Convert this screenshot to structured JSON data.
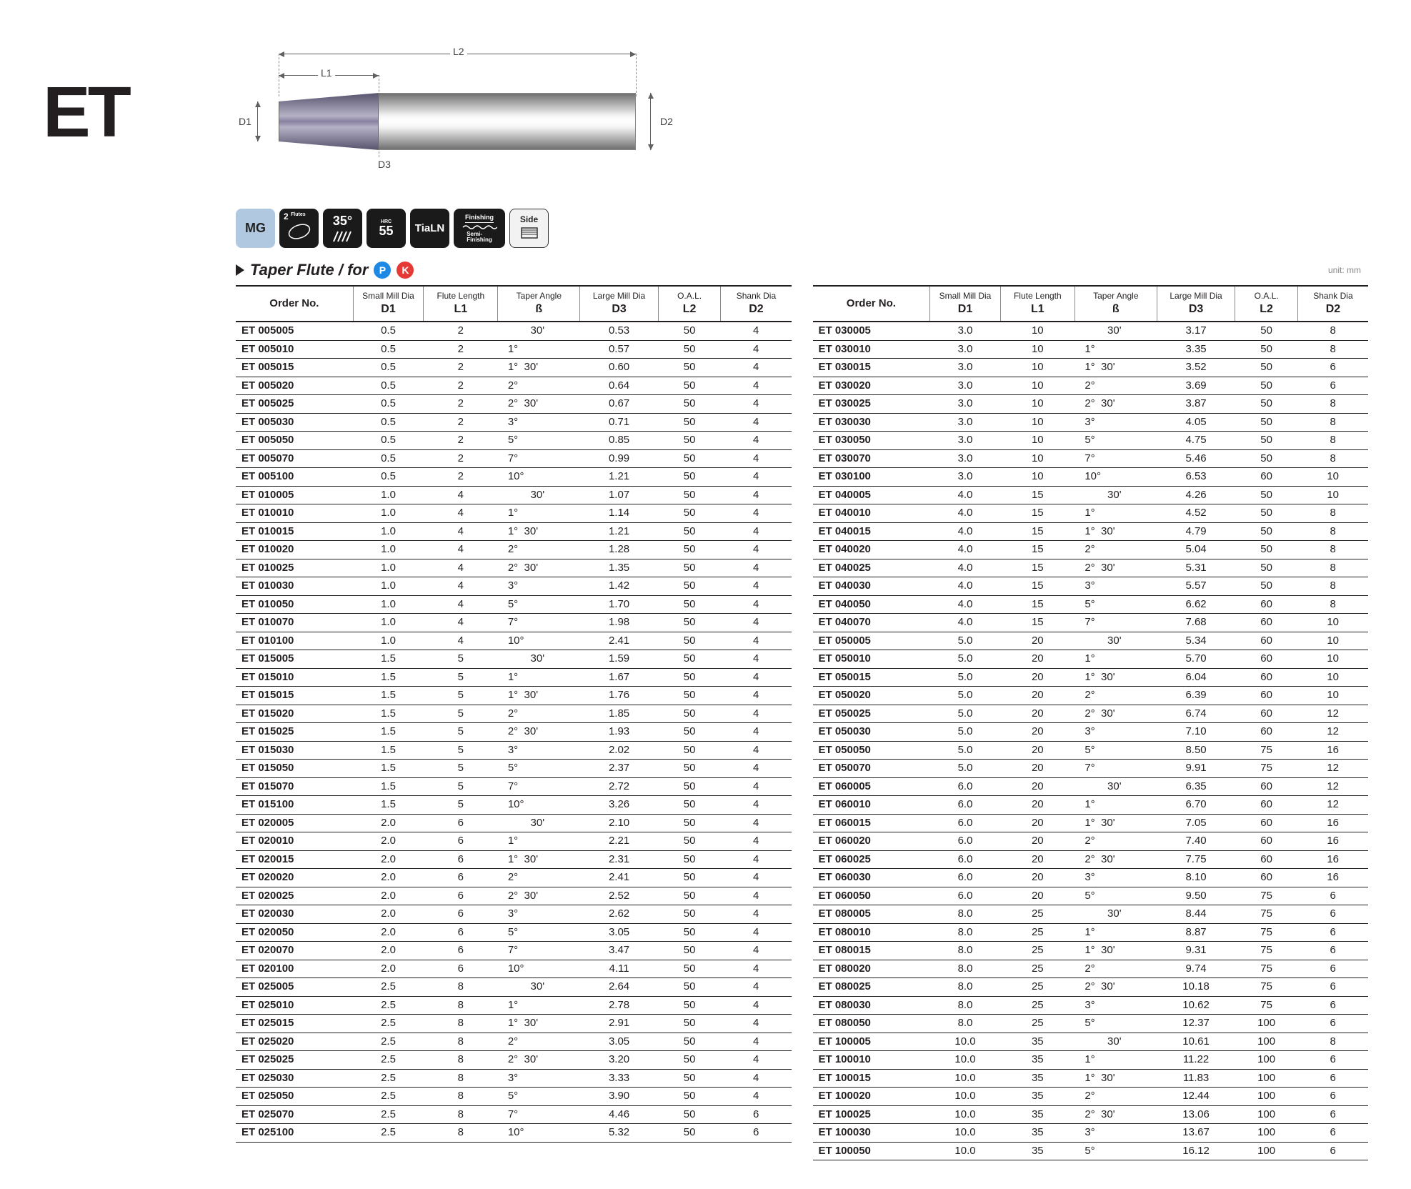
{
  "series": "ET",
  "diagram_labels": {
    "L2": "L2",
    "L1": "L1",
    "D1": "D1",
    "D2": "D2",
    "D3": "D3"
  },
  "badges": {
    "mg": "MG",
    "flutes_n": "2",
    "flutes_lbl": "Flutes",
    "helix": "35°",
    "hrc_top": "HRC",
    "hrc_n": "55",
    "coating": "TiaLN",
    "finishing_top": "Finishing",
    "finishing_bot": "Semi-\nFinishing",
    "side": "Side"
  },
  "title": {
    "text": "Taper Flute / for",
    "p": "P",
    "k": "K"
  },
  "unit": "unit: mm",
  "columns": {
    "order": "Order No.",
    "d1_top": "Small Mill Dia",
    "d1": "D1",
    "l1_top": "Flute Length",
    "l1": "L1",
    "beta_top": "Taper Angle",
    "beta": "ß",
    "d3_top": "Large Mill Dia",
    "d3": "D3",
    "l2_top": "O.A.L.",
    "l2": "L2",
    "d2_top": "Shank Dia",
    "d2": "D2"
  },
  "degree": "°",
  "minute": "'",
  "table_left": [
    [
      "ET 005005",
      "0.5",
      "2",
      "",
      "30",
      "0.53",
      "50",
      "4"
    ],
    [
      "ET 005010",
      "0.5",
      "2",
      "1",
      "",
      "0.57",
      "50",
      "4"
    ],
    [
      "ET 005015",
      "0.5",
      "2",
      "1",
      "30",
      "0.60",
      "50",
      "4"
    ],
    [
      "ET 005020",
      "0.5",
      "2",
      "2",
      "",
      "0.64",
      "50",
      "4"
    ],
    [
      "ET 005025",
      "0.5",
      "2",
      "2",
      "30",
      "0.67",
      "50",
      "4"
    ],
    [
      "ET 005030",
      "0.5",
      "2",
      "3",
      "",
      "0.71",
      "50",
      "4"
    ],
    [
      "ET 005050",
      "0.5",
      "2",
      "5",
      "",
      "0.85",
      "50",
      "4"
    ],
    [
      "ET 005070",
      "0.5",
      "2",
      "7",
      "",
      "0.99",
      "50",
      "4"
    ],
    [
      "ET 005100",
      "0.5",
      "2",
      "10",
      "",
      "1.21",
      "50",
      "4"
    ],
    [
      "ET 010005",
      "1.0",
      "4",
      "",
      "30",
      "1.07",
      "50",
      "4"
    ],
    [
      "ET 010010",
      "1.0",
      "4",
      "1",
      "",
      "1.14",
      "50",
      "4"
    ],
    [
      "ET 010015",
      "1.0",
      "4",
      "1",
      "30",
      "1.21",
      "50",
      "4"
    ],
    [
      "ET 010020",
      "1.0",
      "4",
      "2",
      "",
      "1.28",
      "50",
      "4"
    ],
    [
      "ET 010025",
      "1.0",
      "4",
      "2",
      "30",
      "1.35",
      "50",
      "4"
    ],
    [
      "ET 010030",
      "1.0",
      "4",
      "3",
      "",
      "1.42",
      "50",
      "4"
    ],
    [
      "ET 010050",
      "1.0",
      "4",
      "5",
      "",
      "1.70",
      "50",
      "4"
    ],
    [
      "ET 010070",
      "1.0",
      "4",
      "7",
      "",
      "1.98",
      "50",
      "4"
    ],
    [
      "ET 010100",
      "1.0",
      "4",
      "10",
      "",
      "2.41",
      "50",
      "4"
    ],
    [
      "ET 015005",
      "1.5",
      "5",
      "",
      "30",
      "1.59",
      "50",
      "4"
    ],
    [
      "ET 015010",
      "1.5",
      "5",
      "1",
      "",
      "1.67",
      "50",
      "4"
    ],
    [
      "ET 015015",
      "1.5",
      "5",
      "1",
      "30",
      "1.76",
      "50",
      "4"
    ],
    [
      "ET 015020",
      "1.5",
      "5",
      "2",
      "",
      "1.85",
      "50",
      "4"
    ],
    [
      "ET 015025",
      "1.5",
      "5",
      "2",
      "30",
      "1.93",
      "50",
      "4"
    ],
    [
      "ET 015030",
      "1.5",
      "5",
      "3",
      "",
      "2.02",
      "50",
      "4"
    ],
    [
      "ET 015050",
      "1.5",
      "5",
      "5",
      "",
      "2.37",
      "50",
      "4"
    ],
    [
      "ET 015070",
      "1.5",
      "5",
      "7",
      "",
      "2.72",
      "50",
      "4"
    ],
    [
      "ET 015100",
      "1.5",
      "5",
      "10",
      "",
      "3.26",
      "50",
      "4"
    ],
    [
      "ET 020005",
      "2.0",
      "6",
      "",
      "30",
      "2.10",
      "50",
      "4"
    ],
    [
      "ET 020010",
      "2.0",
      "6",
      "1",
      "",
      "2.21",
      "50",
      "4"
    ],
    [
      "ET 020015",
      "2.0",
      "6",
      "1",
      "30",
      "2.31",
      "50",
      "4"
    ],
    [
      "ET 020020",
      "2.0",
      "6",
      "2",
      "",
      "2.41",
      "50",
      "4"
    ],
    [
      "ET 020025",
      "2.0",
      "6",
      "2",
      "30",
      "2.52",
      "50",
      "4"
    ],
    [
      "ET 020030",
      "2.0",
      "6",
      "3",
      "",
      "2.62",
      "50",
      "4"
    ],
    [
      "ET 020050",
      "2.0",
      "6",
      "5",
      "",
      "3.05",
      "50",
      "4"
    ],
    [
      "ET 020070",
      "2.0",
      "6",
      "7",
      "",
      "3.47",
      "50",
      "4"
    ],
    [
      "ET 020100",
      "2.0",
      "6",
      "10",
      "",
      "4.11",
      "50",
      "4"
    ],
    [
      "ET 025005",
      "2.5",
      "8",
      "",
      "30",
      "2.64",
      "50",
      "4"
    ],
    [
      "ET 025010",
      "2.5",
      "8",
      "1",
      "",
      "2.78",
      "50",
      "4"
    ],
    [
      "ET 025015",
      "2.5",
      "8",
      "1",
      "30",
      "2.91",
      "50",
      "4"
    ],
    [
      "ET 025020",
      "2.5",
      "8",
      "2",
      "",
      "3.05",
      "50",
      "4"
    ],
    [
      "ET 025025",
      "2.5",
      "8",
      "2",
      "30",
      "3.20",
      "50",
      "4"
    ],
    [
      "ET 025030",
      "2.5",
      "8",
      "3",
      "",
      "3.33",
      "50",
      "4"
    ],
    [
      "ET 025050",
      "2.5",
      "8",
      "5",
      "",
      "3.90",
      "50",
      "4"
    ],
    [
      "ET 025070",
      "2.5",
      "8",
      "7",
      "",
      "4.46",
      "50",
      "6"
    ],
    [
      "ET 025100",
      "2.5",
      "8",
      "10",
      "",
      "5.32",
      "50",
      "6"
    ]
  ],
  "table_right": [
    [
      "ET 030005",
      "3.0",
      "10",
      "",
      "30",
      "3.17",
      "50",
      "8"
    ],
    [
      "ET 030010",
      "3.0",
      "10",
      "1",
      "",
      "3.35",
      "50",
      "8"
    ],
    [
      "ET 030015",
      "3.0",
      "10",
      "1",
      "30",
      "3.52",
      "50",
      "6"
    ],
    [
      "ET 030020",
      "3.0",
      "10",
      "2",
      "",
      "3.69",
      "50",
      "6"
    ],
    [
      "ET 030025",
      "3.0",
      "10",
      "2",
      "30",
      "3.87",
      "50",
      "8"
    ],
    [
      "ET 030030",
      "3.0",
      "10",
      "3",
      "",
      "4.05",
      "50",
      "8"
    ],
    [
      "ET 030050",
      "3.0",
      "10",
      "5",
      "",
      "4.75",
      "50",
      "8"
    ],
    [
      "ET 030070",
      "3.0",
      "10",
      "7",
      "",
      "5.46",
      "50",
      "8"
    ],
    [
      "ET 030100",
      "3.0",
      "10",
      "10",
      "",
      "6.53",
      "60",
      "10"
    ],
    [
      "ET 040005",
      "4.0",
      "15",
      "",
      "30",
      "4.26",
      "50",
      "10"
    ],
    [
      "ET 040010",
      "4.0",
      "15",
      "1",
      "",
      "4.52",
      "50",
      "8"
    ],
    [
      "ET 040015",
      "4.0",
      "15",
      "1",
      "30",
      "4.79",
      "50",
      "8"
    ],
    [
      "ET 040020",
      "4.0",
      "15",
      "2",
      "",
      "5.04",
      "50",
      "8"
    ],
    [
      "ET 040025",
      "4.0",
      "15",
      "2",
      "30",
      "5.31",
      "50",
      "8"
    ],
    [
      "ET 040030",
      "4.0",
      "15",
      "3",
      "",
      "5.57",
      "50",
      "8"
    ],
    [
      "ET 040050",
      "4.0",
      "15",
      "5",
      "",
      "6.62",
      "60",
      "8"
    ],
    [
      "ET 040070",
      "4.0",
      "15",
      "7",
      "",
      "7.68",
      "60",
      "10"
    ],
    [
      "ET 050005",
      "5.0",
      "20",
      "",
      "30",
      "5.34",
      "60",
      "10"
    ],
    [
      "ET 050010",
      "5.0",
      "20",
      "1",
      "",
      "5.70",
      "60",
      "10"
    ],
    [
      "ET 050015",
      "5.0",
      "20",
      "1",
      "30",
      "6.04",
      "60",
      "10"
    ],
    [
      "ET 050020",
      "5.0",
      "20",
      "2",
      "",
      "6.39",
      "60",
      "10"
    ],
    [
      "ET 050025",
      "5.0",
      "20",
      "2",
      "30",
      "6.74",
      "60",
      "12"
    ],
    [
      "ET 050030",
      "5.0",
      "20",
      "3",
      "",
      "7.10",
      "60",
      "12"
    ],
    [
      "ET 050050",
      "5.0",
      "20",
      "5",
      "",
      "8.50",
      "75",
      "16"
    ],
    [
      "ET 050070",
      "5.0",
      "20",
      "7",
      "",
      "9.91",
      "75",
      "12"
    ],
    [
      "ET 060005",
      "6.0",
      "20",
      "",
      "30",
      "6.35",
      "60",
      "12"
    ],
    [
      "ET 060010",
      "6.0",
      "20",
      "1",
      "",
      "6.70",
      "60",
      "12"
    ],
    [
      "ET 060015",
      "6.0",
      "20",
      "1",
      "30",
      "7.05",
      "60",
      "16"
    ],
    [
      "ET 060020",
      "6.0",
      "20",
      "2",
      "",
      "7.40",
      "60",
      "16"
    ],
    [
      "ET 060025",
      "6.0",
      "20",
      "2",
      "30",
      "7.75",
      "60",
      "16"
    ],
    [
      "ET 060030",
      "6.0",
      "20",
      "3",
      "",
      "8.10",
      "60",
      "16"
    ],
    [
      "ET 060050",
      "6.0",
      "20",
      "5",
      "",
      "9.50",
      "75",
      "6"
    ],
    [
      "ET 080005",
      "8.0",
      "25",
      "",
      "30",
      "8.44",
      "75",
      "6"
    ],
    [
      "ET 080010",
      "8.0",
      "25",
      "1",
      "",
      "8.87",
      "75",
      "6"
    ],
    [
      "ET 080015",
      "8.0",
      "25",
      "1",
      "30",
      "9.31",
      "75",
      "6"
    ],
    [
      "ET 080020",
      "8.0",
      "25",
      "2",
      "",
      "9.74",
      "75",
      "6"
    ],
    [
      "ET 080025",
      "8.0",
      "25",
      "2",
      "30",
      "10.18",
      "75",
      "6"
    ],
    [
      "ET 080030",
      "8.0",
      "25",
      "3",
      "",
      "10.62",
      "75",
      "6"
    ],
    [
      "ET 080050",
      "8.0",
      "25",
      "5",
      "",
      "12.37",
      "100",
      "6"
    ],
    [
      "ET 100005",
      "10.0",
      "35",
      "",
      "30",
      "10.61",
      "100",
      "8"
    ],
    [
      "ET 100010",
      "10.0",
      "35",
      "1",
      "",
      "11.22",
      "100",
      "6"
    ],
    [
      "ET 100015",
      "10.0",
      "35",
      "1",
      "30",
      "11.83",
      "100",
      "6"
    ],
    [
      "ET 100020",
      "10.0",
      "35",
      "2",
      "",
      "12.44",
      "100",
      "6"
    ],
    [
      "ET 100025",
      "10.0",
      "35",
      "2",
      "30",
      "13.06",
      "100",
      "6"
    ],
    [
      "ET 100030",
      "10.0",
      "35",
      "3",
      "",
      "13.67",
      "100",
      "6"
    ],
    [
      "ET 100050",
      "10.0",
      "35",
      "5",
      "",
      "16.12",
      "100",
      "6"
    ]
  ]
}
